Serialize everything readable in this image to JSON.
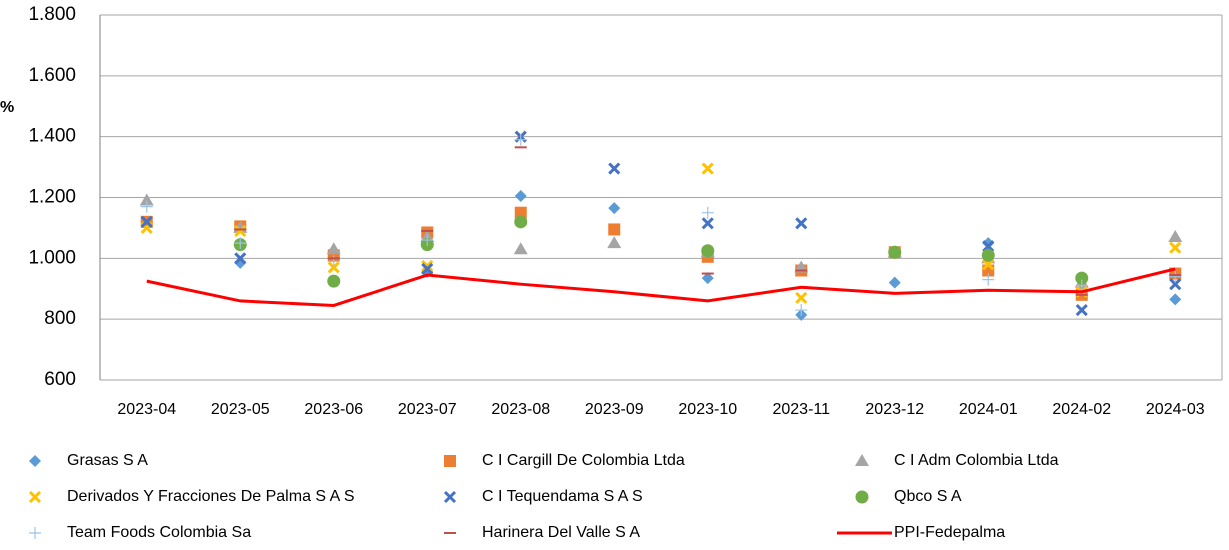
{
  "chart_data": {
    "type": "scatter",
    "y_label": "%",
    "categories": [
      "2023-04",
      "2023-05",
      "2023-06",
      "2023-07",
      "2023-08",
      "2023-09",
      "2023-10",
      "2023-11",
      "2023-12",
      "2024-01",
      "2024-02",
      "2024-03"
    ],
    "ylim": [
      600,
      1800
    ],
    "yticks": [
      600,
      800,
      {
        "value": 1000,
        "label": "1.000"
      },
      {
        "value": 1200,
        "label": "1.200"
      },
      {
        "value": 1400,
        "label": "1.400"
      },
      {
        "value": 1600,
        "label": "1.600"
      },
      {
        "value": 1800,
        "label": "1.800"
      }
    ],
    "grid": true,
    "legend": "bottom",
    "series": [
      {
        "name": "Grasas S A",
        "color": "#5b9bd5",
        "marker": "diamond",
        "values": [
          1120,
          985,
          1020,
          955,
          1205,
          1165,
          935,
          814,
          920,
          1050,
          910,
          865
        ]
      },
      {
        "name": "C I Cargill De Colombia Ltda",
        "color": "#ed7d31",
        "marker": "square",
        "values": [
          1120,
          1105,
          1010,
          1085,
          1150,
          1095,
          1005,
          960,
          1020,
          960,
          880,
          950
        ]
      },
      {
        "name": "C I Adm Colombia Ltda",
        "color": "#a5a5a5",
        "marker": "triangle",
        "values": [
          1190,
          1100,
          1030,
          1070,
          1030,
          1050,
          1020,
          970,
          1020,
          1000,
          920,
          1070
        ]
      },
      {
        "name": "Derivados Y Fracciones De Palma S A S",
        "color": "#ffc000",
        "marker": "x",
        "values": [
          1100,
          1090,
          970,
          975,
          1400,
          null,
          1295,
          870,
          null,
          980,
          890,
          1035
        ]
      },
      {
        "name": "C I Tequendama S A S",
        "color": "#4472c4",
        "marker": "x",
        "values": [
          1120,
          1000,
          null,
          965,
          1400,
          1295,
          1115,
          1115,
          null,
          1040,
          830,
          915
        ]
      },
      {
        "name": "Qbco S A",
        "color": "#70ad47",
        "marker": "circle",
        "values": [
          null,
          1045,
          925,
          1045,
          1120,
          null,
          1025,
          null,
          1020,
          1010,
          935,
          null
        ]
      },
      {
        "name": "Team Foods Colombia Sa",
        "color": "#9dc3e6",
        "marker": "plus",
        "values": [
          1170,
          1050,
          990,
          1060,
          1390,
          null,
          1150,
          830,
          null,
          930,
          910,
          940
        ]
      },
      {
        "name": "Harinera Del Valle S A",
        "color": "#c0504d",
        "marker": "dash",
        "values": [
          null,
          1095,
          1000,
          1090,
          1365,
          null,
          950,
          960,
          885,
          null,
          880,
          945
        ]
      },
      {
        "name": "PPI-Fedepalma",
        "color": "#ff0000",
        "marker": "line",
        "values": [
          925,
          860,
          845,
          945,
          915,
          890,
          860,
          905,
          885,
          895,
          890,
          965
        ]
      }
    ]
  }
}
